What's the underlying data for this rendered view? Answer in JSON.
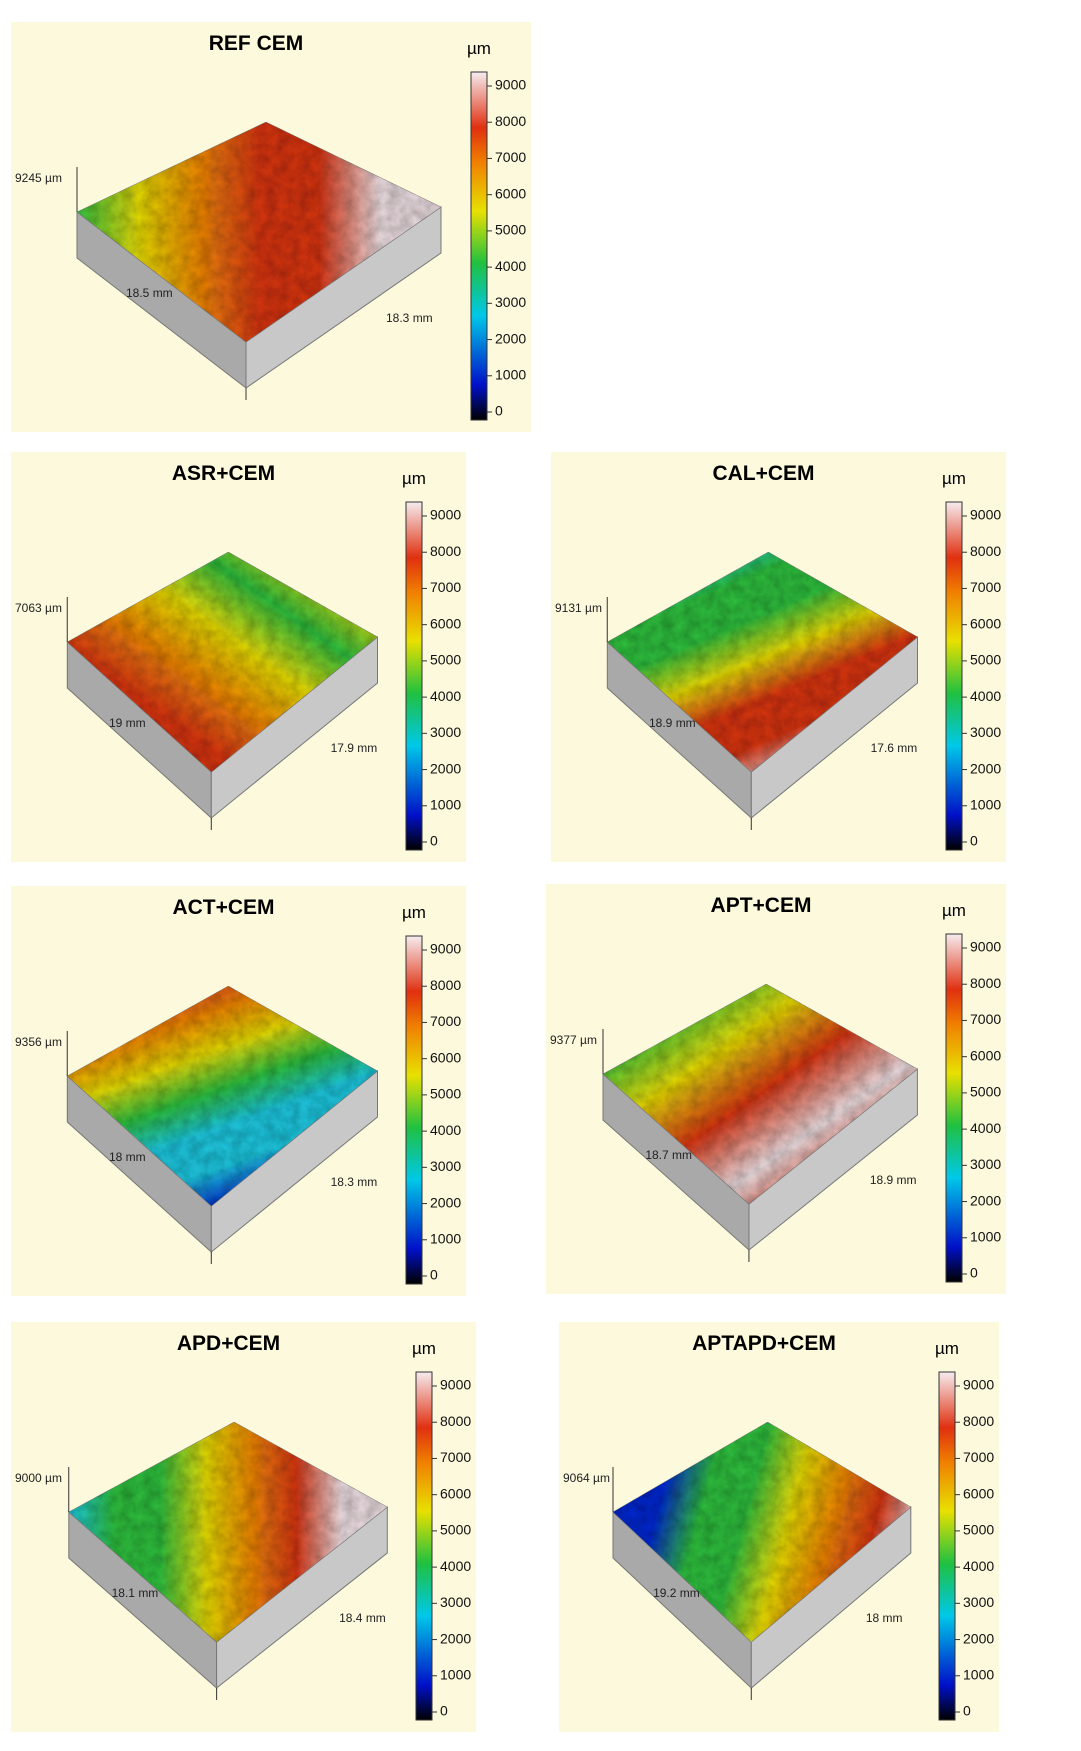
{
  "colorbar": {
    "unit": "µm",
    "ticks": [
      0,
      1000,
      2000,
      3000,
      4000,
      5000,
      6000,
      7000,
      8000,
      9000
    ]
  },
  "panels": [
    {
      "title": "REF CEM",
      "height": "9245 µm",
      "x_size": "18.5 mm",
      "y_size": "18.3 mm"
    },
    {
      "title": "ASR+CEM",
      "height": "7063 µm",
      "x_size": "19 mm",
      "y_size": "17.9 mm"
    },
    {
      "title": "CAL+CEM",
      "height": "9131 µm",
      "x_size": "18.9 mm",
      "y_size": "17.6 mm"
    },
    {
      "title": "ACT+CEM",
      "height": "9356 µm",
      "x_size": "18 mm",
      "y_size": "18.3 mm"
    },
    {
      "title": "APT+CEM",
      "height": "9377 µm",
      "x_size": "18.7 mm",
      "y_size": "18.9 mm"
    },
    {
      "title": "APD+CEM",
      "height": "9000 µm",
      "x_size": "18.1 mm",
      "y_size": "18.4 mm"
    },
    {
      "title": "APTAPD+CEM",
      "height": "9064 µm",
      "x_size": "19.2 mm",
      "y_size": "18 mm"
    }
  ]
}
